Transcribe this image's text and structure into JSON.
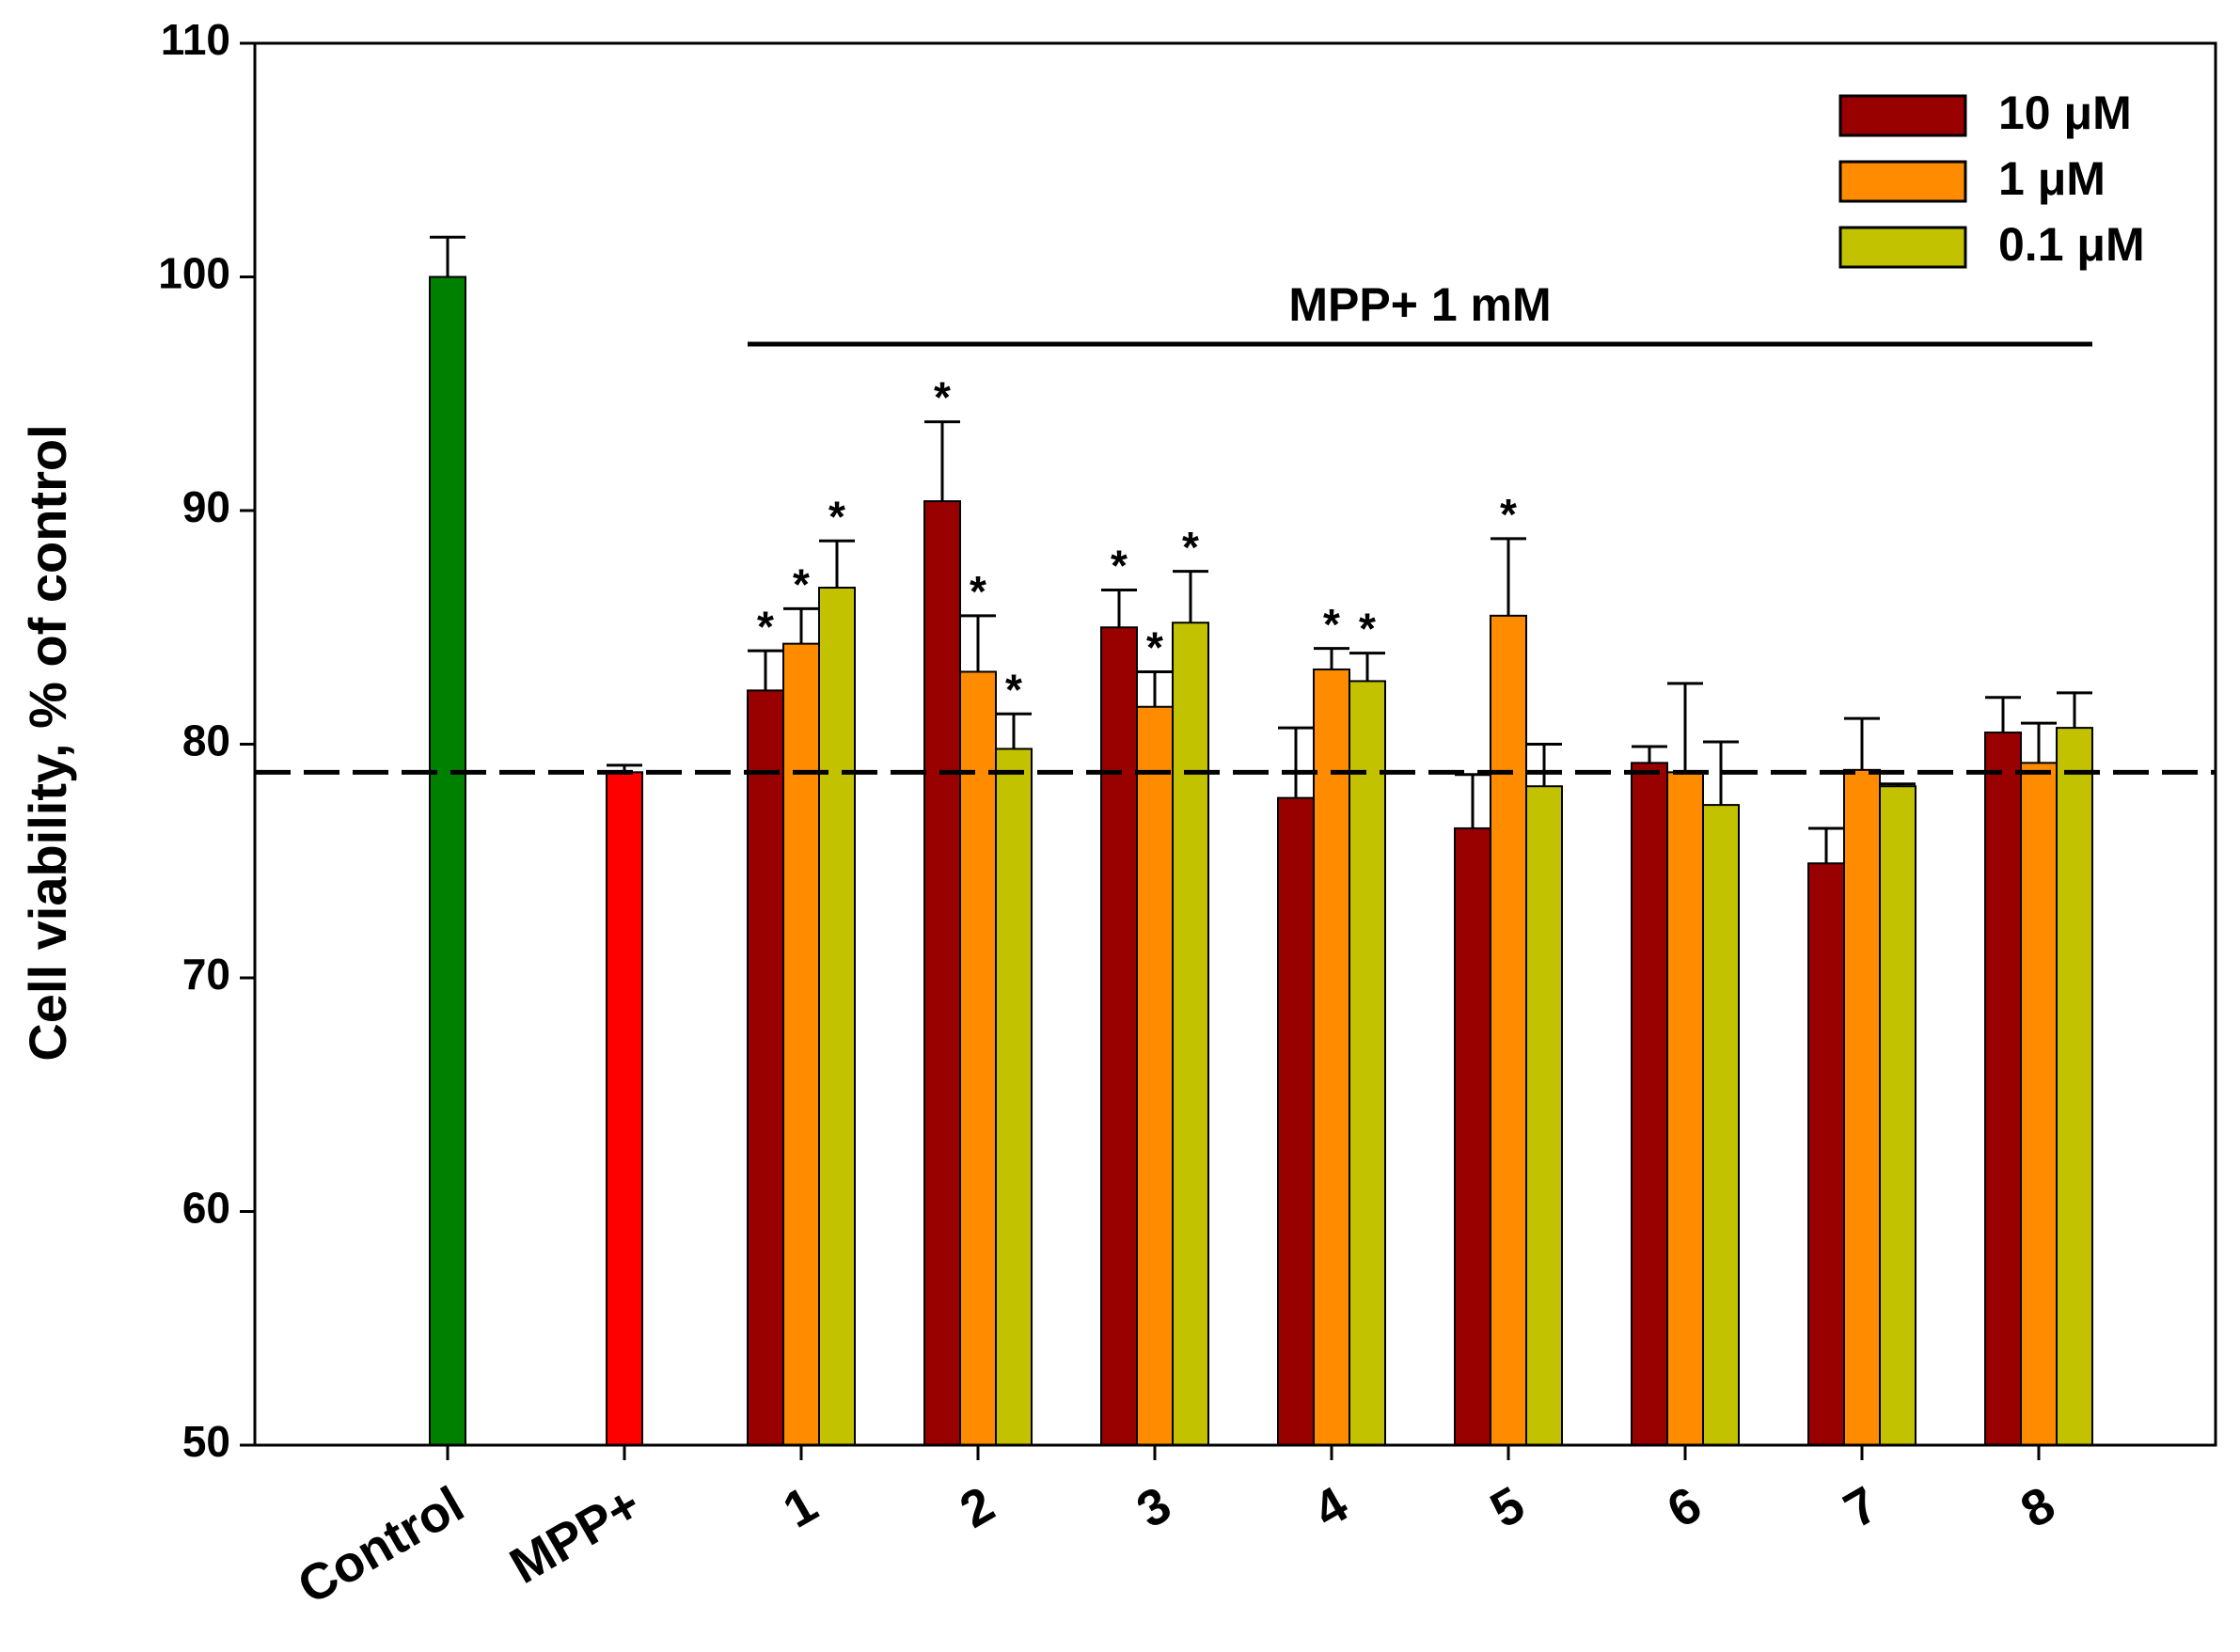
{
  "chart_data": {
    "type": "bar",
    "ylabel": "Cell viability, % of control",
    "annotation": "MPP+ 1 mM",
    "ylim": [
      50,
      110
    ],
    "yticks": [
      50,
      60,
      70,
      80,
      90,
      100,
      110
    ],
    "reference_line": 78.8,
    "legend": "upper right",
    "categories": [
      "Control",
      "MPP+",
      "1",
      "2",
      "3",
      "4",
      "5",
      "6",
      "7",
      "8"
    ],
    "single_bars": {
      "values": [
        100,
        78.8
      ],
      "errors": [
        1.7,
        0.3
      ],
      "colors": [
        "#008000",
        "#ff0000"
      ]
    },
    "series": [
      {
        "name": "10 μM",
        "color": "#990000",
        "values": [
          null,
          null,
          82.3,
          90.4,
          85.0,
          77.7,
          76.4,
          79.2,
          74.9,
          80.5
        ],
        "errors": [
          null,
          null,
          1.7,
          3.4,
          1.6,
          3.0,
          2.3,
          0.7,
          1.5,
          1.5
        ],
        "stars": [
          null,
          null,
          "*",
          "*",
          "*",
          null,
          null,
          null,
          null,
          null
        ]
      },
      {
        "name": "1 μM",
        "color": "#ff8c00",
        "values": [
          null,
          null,
          84.3,
          83.1,
          81.6,
          83.2,
          85.5,
          78.8,
          78.9,
          79.2
        ],
        "errors": [
          null,
          null,
          1.5,
          2.4,
          1.5,
          0.9,
          3.3,
          3.8,
          2.2,
          1.7
        ],
        "stars": [
          null,
          null,
          "*",
          "*",
          "*",
          "*",
          "*",
          null,
          null,
          null
        ]
      },
      {
        "name": "0.1 μM",
        "color": "#c2c200",
        "values": [
          null,
          null,
          86.7,
          79.8,
          85.2,
          82.7,
          78.2,
          77.4,
          78.2,
          80.7
        ],
        "errors": [
          null,
          null,
          2.0,
          1.5,
          2.2,
          1.2,
          1.8,
          2.7,
          0.1,
          1.5
        ],
        "stars": [
          null,
          null,
          "*",
          "*",
          "*",
          "*",
          null,
          null,
          null,
          null
        ]
      }
    ]
  }
}
